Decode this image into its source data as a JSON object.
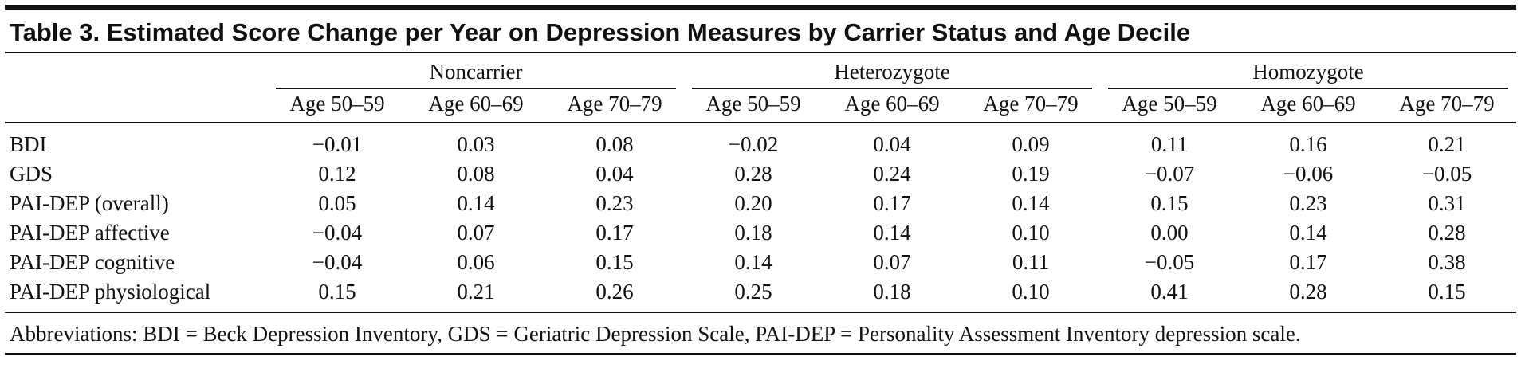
{
  "title": "Table 3. Estimated Score Change per Year on Depression Measures by Carrier Status and Age Decile",
  "table": {
    "groups": [
      "Noncarrier",
      "Heterozygote",
      "Homozygote"
    ],
    "columns": [
      "Age 50–59",
      "Age 60–69",
      "Age 70–79",
      "Age 50–59",
      "Age 60–69",
      "Age 70–79",
      "Age 50–59",
      "Age 60–69",
      "Age 70–79"
    ],
    "rows": [
      {
        "label": "BDI",
        "values": [
          "−0.01",
          "0.03",
          "0.08",
          "−0.02",
          "0.04",
          "0.09",
          "0.11",
          "0.16",
          "0.21"
        ]
      },
      {
        "label": "GDS",
        "values": [
          "0.12",
          "0.08",
          "0.04",
          "0.28",
          "0.24",
          "0.19",
          "−0.07",
          "−0.06",
          "−0.05"
        ]
      },
      {
        "label": "PAI-DEP (overall)",
        "values": [
          "0.05",
          "0.14",
          "0.23",
          "0.20",
          "0.17",
          "0.14",
          "0.15",
          "0.23",
          "0.31"
        ]
      },
      {
        "label": "PAI-DEP affective",
        "values": [
          "−0.04",
          "0.07",
          "0.17",
          "0.18",
          "0.14",
          "0.10",
          "0.00",
          "0.14",
          "0.28"
        ]
      },
      {
        "label": "PAI-DEP cognitive",
        "values": [
          "−0.04",
          "0.06",
          "0.15",
          "0.14",
          "0.07",
          "0.11",
          "−0.05",
          "0.17",
          "0.38"
        ]
      },
      {
        "label": "PAI-DEP physiological",
        "values": [
          "0.15",
          "0.21",
          "0.26",
          "0.25",
          "0.18",
          "0.10",
          "0.41",
          "0.28",
          "0.15"
        ]
      }
    ]
  },
  "footnote": "Abbreviations: BDI = Beck Depression Inventory, GDS = Geriatric Depression Scale, PAI-DEP = Personality Assessment Inventory depression scale."
}
